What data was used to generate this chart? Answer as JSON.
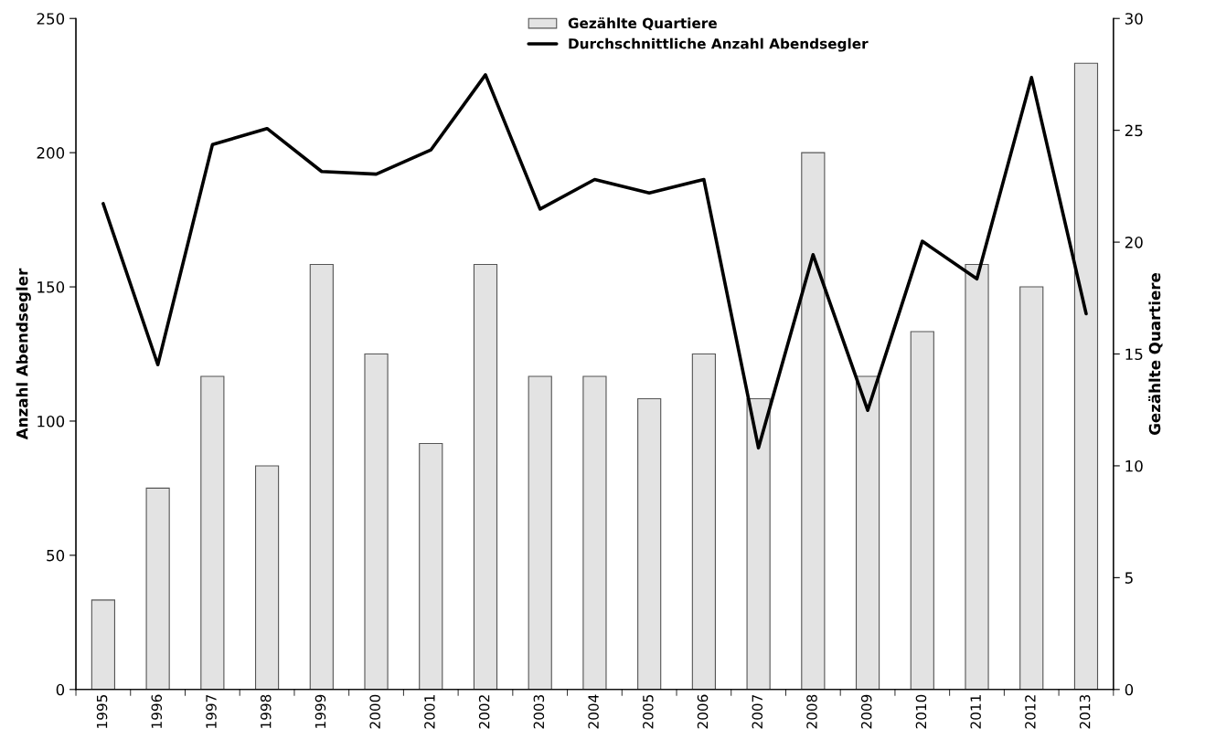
{
  "chart_data": {
    "type": "bar",
    "ylabel": "Anzahl Abendsegler",
    "y2label": "Gezählte Quartiere",
    "categories": [
      "1995",
      "1996",
      "1997",
      "1998",
      "1999",
      "2000",
      "2001",
      "2002",
      "2003",
      "2004",
      "2005",
      "2006",
      "2007",
      "2008",
      "2009",
      "2010",
      "2011",
      "2012",
      "2013"
    ],
    "series": [
      {
        "name": "Gezählte Quartiere",
        "type": "bar",
        "axis": "y2",
        "color": "#e3e3e3",
        "values": [
          4,
          9,
          14,
          10,
          19,
          15,
          11,
          19,
          14,
          14,
          13,
          15,
          13,
          24,
          14,
          16,
          19,
          18,
          28
        ]
      },
      {
        "name": "Durchschnittliche Anzahl Abendsegler",
        "type": "line",
        "axis": "y",
        "color": "#000000",
        "values": [
          181,
          121,
          203,
          209,
          193,
          192,
          201,
          229,
          179,
          190,
          185,
          190,
          90,
          162,
          104,
          167,
          153,
          228,
          140
        ]
      }
    ],
    "ylim": [
      0,
      250
    ],
    "yticks": [
      0,
      50,
      100,
      150,
      200,
      250
    ],
    "y2lim": [
      0,
      30
    ],
    "y2ticks": [
      0,
      5,
      10,
      15,
      20,
      25,
      30
    ],
    "grid": false,
    "legend": "top",
    "marker": "none",
    "line_style": "solid"
  }
}
